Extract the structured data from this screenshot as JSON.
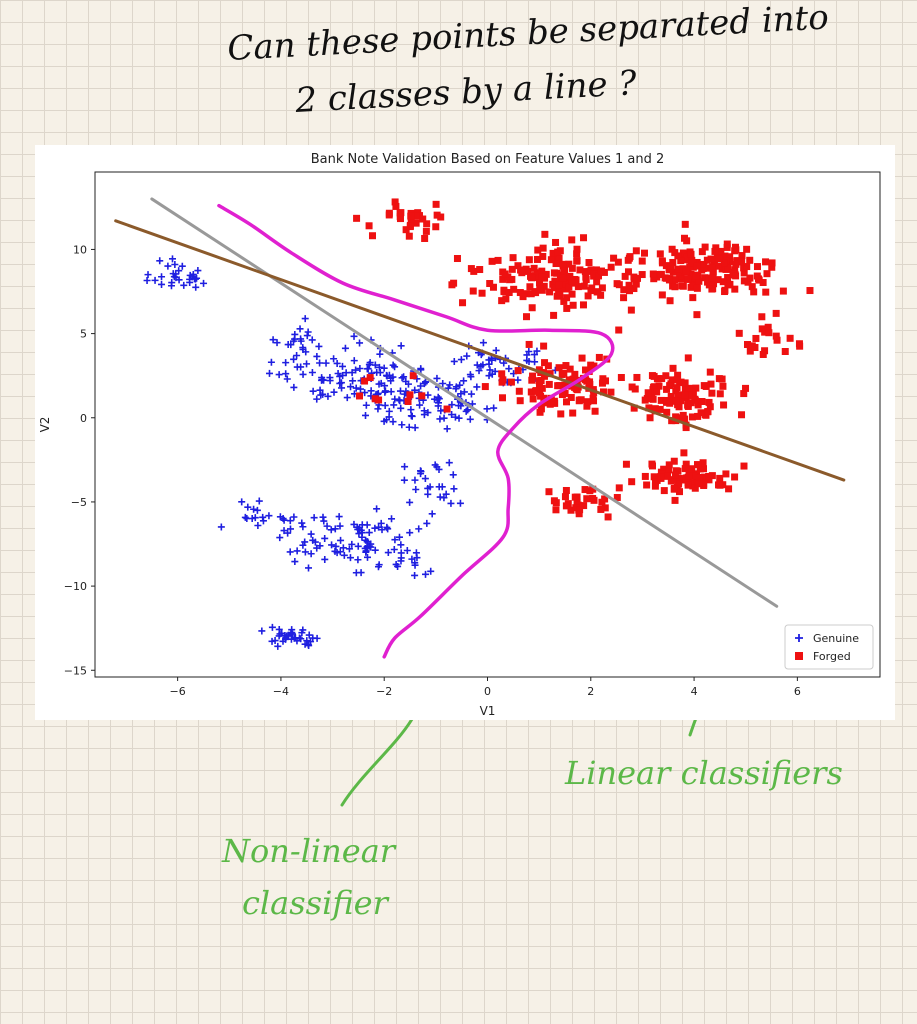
{
  "note": {
    "question_line1": "Can these points be separated into",
    "question_line2": "2 classes by a line ?",
    "label_linear": "Linear classifiers",
    "label_nonlinear_1": "Non-linear",
    "label_nonlinear_2": "classifier"
  },
  "colors": {
    "genuine": "#1f1fe0",
    "forged": "#ee1111",
    "gray_line": "#999999",
    "brown_line": "#8b5a2b",
    "magenta_curve": "#e020d0",
    "ink_green": "#5cb848",
    "ink_black": "#111111"
  },
  "chart_data": {
    "type": "scatter",
    "title": "Bank Note Validation Based on Feature Values 1 and 2",
    "xlabel": "V1",
    "ylabel": "V2",
    "xlim": [
      -7.6,
      7.6
    ],
    "ylim": [
      -15.4,
      14.6
    ],
    "xticks": [
      -6,
      -4,
      -2,
      0,
      2,
      4,
      6
    ],
    "yticks": [
      -15,
      -10,
      -5,
      0,
      5,
      10
    ],
    "legend_position": "bottom-right",
    "series": [
      {
        "name": "Genuine",
        "marker": "plus",
        "clusters": [
          {
            "cx": -6.0,
            "cy": 8.3,
            "sx": 0.5,
            "sy": 0.8,
            "n": 30
          },
          {
            "cx": -3.8,
            "cy": 4.3,
            "sx": 0.5,
            "sy": 1.5,
            "n": 25
          },
          {
            "cx": -2.4,
            "cy": 2.4,
            "sx": 1.2,
            "sy": 1.5,
            "n": 100
          },
          {
            "cx": -1.2,
            "cy": 0.8,
            "sx": 1.1,
            "sy": 1.4,
            "n": 80
          },
          {
            "cx": 0.2,
            "cy": 3.3,
            "sx": 0.9,
            "sy": 1.1,
            "n": 45
          },
          {
            "cx": -4.5,
            "cy": -5.8,
            "sx": 0.6,
            "sy": 0.6,
            "n": 20
          },
          {
            "cx": -2.5,
            "cy": -7.3,
            "sx": 1.2,
            "sy": 1.5,
            "n": 100
          },
          {
            "cx": -1.0,
            "cy": -4.0,
            "sx": 0.6,
            "sy": 1.4,
            "n": 25
          },
          {
            "cx": -3.8,
            "cy": -13.0,
            "sx": 0.6,
            "sy": 0.4,
            "n": 35
          }
        ]
      },
      {
        "name": "Forged",
        "marker": "square",
        "clusters": [
          {
            "cx": -1.6,
            "cy": 11.8,
            "sx": 0.7,
            "sy": 0.8,
            "n": 30
          },
          {
            "cx": 1.4,
            "cy": 8.2,
            "sx": 1.3,
            "sy": 1.6,
            "n": 160
          },
          {
            "cx": 4.2,
            "cy": 8.8,
            "sx": 1.1,
            "sy": 1.5,
            "n": 170
          },
          {
            "cx": 1.5,
            "cy": 2.0,
            "sx": 1.0,
            "sy": 1.5,
            "n": 100
          },
          {
            "cx": 3.8,
            "cy": 1.3,
            "sx": 0.9,
            "sy": 1.5,
            "n": 100
          },
          {
            "cx": 5.5,
            "cy": 4.5,
            "sx": 0.4,
            "sy": 1.5,
            "n": 20
          },
          {
            "cx": 3.8,
            "cy": -3.6,
            "sx": 0.8,
            "sy": 0.8,
            "n": 80
          },
          {
            "cx": 1.9,
            "cy": -5.0,
            "sx": 0.6,
            "sy": 0.8,
            "n": 30
          },
          {
            "cx": -1.8,
            "cy": 1.5,
            "sx": 0.8,
            "sy": 0.8,
            "n": 10
          }
        ]
      }
    ],
    "classifiers": [
      {
        "kind": "linear",
        "color_key": "gray_line",
        "points": [
          [
            -6.5,
            13.0
          ],
          [
            5.6,
            -11.2
          ]
        ]
      },
      {
        "kind": "linear",
        "color_key": "brown_line",
        "points": [
          [
            -7.2,
            11.7
          ],
          [
            6.9,
            -3.7
          ]
        ]
      },
      {
        "kind": "nonlinear",
        "color_key": "magenta_curve",
        "points": [
          [
            -5.2,
            12.6
          ],
          [
            -4.6,
            11.5
          ],
          [
            -3.8,
            9.8
          ],
          [
            -2.8,
            8.0
          ],
          [
            -1.8,
            7.0
          ],
          [
            -0.8,
            6.0
          ],
          [
            0.0,
            5.2
          ],
          [
            1.2,
            5.2
          ],
          [
            2.2,
            5.0
          ],
          [
            2.4,
            3.8
          ],
          [
            1.8,
            2.3
          ],
          [
            1.0,
            0.8
          ],
          [
            0.5,
            -0.6
          ],
          [
            0.2,
            -2.0
          ],
          [
            0.4,
            -3.6
          ],
          [
            0.4,
            -5.4
          ],
          [
            0.3,
            -7.1
          ],
          [
            -0.5,
            -9.4
          ],
          [
            -1.3,
            -11.8
          ],
          [
            -1.8,
            -13.1
          ],
          [
            -2.0,
            -14.2
          ]
        ]
      }
    ]
  }
}
